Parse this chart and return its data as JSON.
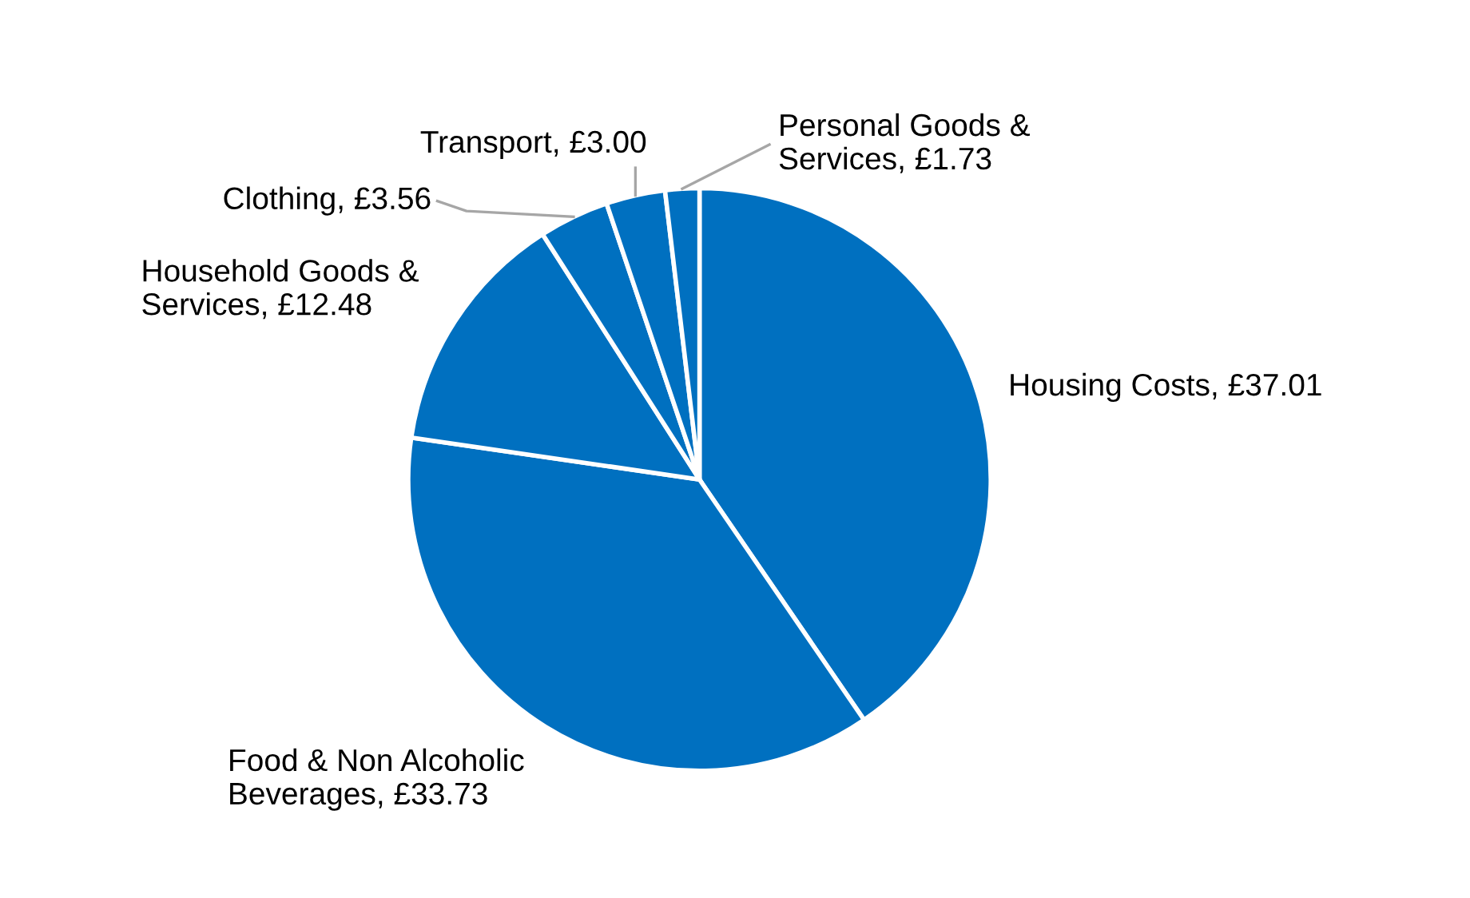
{
  "chart_data": {
    "type": "pie",
    "categories": [
      "Housing Costs, £37.01",
      "Food & Non Alcoholic\nBeverages, £33.73",
      "Household Goods &\nServices, £12.48",
      "Clothing, £3.56",
      "Transport, £3.00",
      "Personal Goods &\nServices, £1.73"
    ],
    "values": [
      37.01,
      33.73,
      12.48,
      3.56,
      3.0,
      1.73
    ],
    "colors": [
      "#0070c0",
      "#0070c0",
      "#0070c0",
      "#0070c0",
      "#0070c0",
      "#0070c0"
    ],
    "legend": false
  }
}
